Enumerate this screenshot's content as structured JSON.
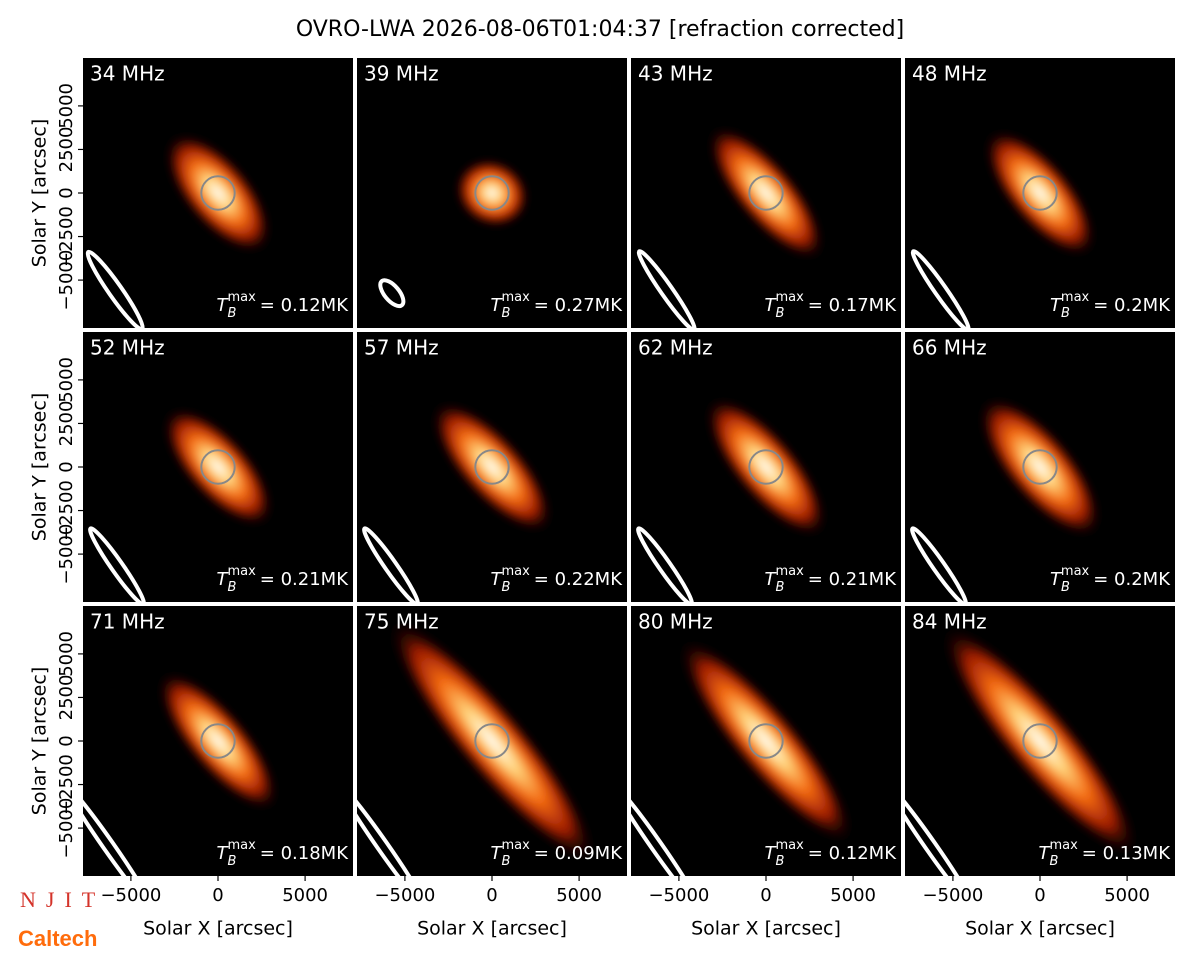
{
  "chart_data": {
    "type": "image",
    "title": "OVRO-LWA 2026-08-06T01:04:37 [refraction corrected]",
    "xlabel": "Solar X [arcsec]",
    "ylabel": "Solar Y [arcsec]",
    "xlim": [
      -7750,
      7750
    ],
    "ylim": [
      -7750,
      7750
    ],
    "xticks": [
      {
        "value": -5000,
        "label": "−5000"
      },
      0,
      5000
    ],
    "yticks": [
      {
        "value": -5000,
        "label": "−5000"
      },
      {
        "value": -2500,
        "label": "−2500"
      },
      0,
      2500,
      5000
    ],
    "sun_radius": 960,
    "tmax_symbol": {
      "base": "T",
      "sub": "B",
      "sup": "max"
    },
    "panels": [
      {
        "label": "34 MHz",
        "tmax": 0.12,
        "tmax_label": "= 0.12MK",
        "source": {
          "major": 4200,
          "minor": 1900,
          "angle": -50
        },
        "beam": {
          "x": -5900,
          "y": -5600,
          "major": 2700,
          "minor": 380,
          "angle": -55
        }
      },
      {
        "label": "39 MHz",
        "tmax": 0.27,
        "tmax_label": "= 0.27MK",
        "source": {
          "major": 2200,
          "minor": 1900,
          "angle": -30
        },
        "beam": {
          "x": -5750,
          "y": -5750,
          "major": 900,
          "minor": 420,
          "angle": -50
        }
      },
      {
        "label": "43 MHz",
        "tmax": 0.17,
        "tmax_label": "= 0.17MK",
        "source": {
          "major": 4800,
          "minor": 1700,
          "angle": -50
        },
        "beam": {
          "x": -5700,
          "y": -5600,
          "major": 2750,
          "minor": 330,
          "angle": -55
        }
      },
      {
        "label": "48 MHz",
        "tmax": 0.2,
        "tmax_label": "= 0.2MK",
        "source": {
          "major": 4500,
          "minor": 1800,
          "angle": -50
        },
        "beam": {
          "x": -5700,
          "y": -5600,
          "major": 2750,
          "minor": 330,
          "angle": -55
        }
      },
      {
        "label": "52 MHz",
        "tmax": 0.21,
        "tmax_label": "= 0.21MK",
        "source": {
          "major": 4300,
          "minor": 1800,
          "angle": -48
        },
        "beam": {
          "x": -5800,
          "y": -5700,
          "major": 2650,
          "minor": 330,
          "angle": -55
        }
      },
      {
        "label": "57 MHz",
        "tmax": 0.22,
        "tmax_label": "= 0.22MK",
        "source": {
          "major": 4800,
          "minor": 1800,
          "angle": -48
        },
        "beam": {
          "x": -5800,
          "y": -5700,
          "major": 2650,
          "minor": 330,
          "angle": -55
        }
      },
      {
        "label": "62 MHz",
        "tmax": 0.21,
        "tmax_label": "= 0.21MK",
        "source": {
          "major": 5000,
          "minor": 1800,
          "angle": -50
        },
        "beam": {
          "x": -5800,
          "y": -5700,
          "major": 2650,
          "minor": 330,
          "angle": -55
        }
      },
      {
        "label": "66 MHz",
        "tmax": 0.2,
        "tmax_label": "= 0.2MK",
        "source": {
          "major": 5000,
          "minor": 1900,
          "angle": -50
        },
        "beam": {
          "x": -5800,
          "y": -5700,
          "major": 2650,
          "minor": 330,
          "angle": -55
        }
      },
      {
        "label": "71 MHz",
        "tmax": 0.18,
        "tmax_label": "= 0.18MK",
        "source": {
          "major": 5000,
          "minor": 1700,
          "angle": -50
        },
        "beam": {
          "x": -6300,
          "y": -6000,
          "major": 4200,
          "minor": 300,
          "angle": -55
        }
      },
      {
        "label": "75 MHz",
        "tmax": 0.09,
        "tmax_label": "= 0.09MK",
        "source": {
          "major": 9000,
          "minor": 1900,
          "angle": -50
        },
        "beam": {
          "x": -6300,
          "y": -6000,
          "major": 4200,
          "minor": 300,
          "angle": -55
        }
      },
      {
        "label": "80 MHz",
        "tmax": 0.12,
        "tmax_label": "= 0.12MK",
        "source": {
          "major": 7500,
          "minor": 1800,
          "angle": -50
        },
        "beam": {
          "x": -6300,
          "y": -6000,
          "major": 4200,
          "minor": 300,
          "angle": -55
        }
      },
      {
        "label": "84 MHz",
        "tmax": 0.13,
        "tmax_label": "= 0.13MK",
        "source": {
          "major": 8500,
          "minor": 1900,
          "angle": -50
        },
        "beam": {
          "x": -6300,
          "y": -6000,
          "major": 4200,
          "minor": 300,
          "angle": -55
        }
      }
    ]
  },
  "logos": [
    "NJIT",
    "Caltech"
  ]
}
